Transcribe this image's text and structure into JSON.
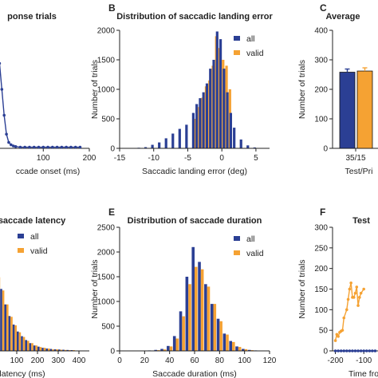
{
  "colors": {
    "all": "#2b3f94",
    "valid": "#f5a233",
    "axis": "#222222"
  },
  "legend": {
    "all": "all",
    "valid": "valid"
  },
  "panels": [
    {
      "id": "A",
      "label": "",
      "title": "ponse trials",
      "xlabel": "ccade onset (ms)",
      "ylabel": ""
    },
    {
      "id": "B",
      "label": "B",
      "title": "Distribution of saccadic landing error",
      "xlabel": "Saccadic landing error (deg)",
      "ylabel": "Number of trials"
    },
    {
      "id": "C",
      "label": "C",
      "title": "Average",
      "xlabel": "Test/Pri",
      "ylabel": "Number of trials"
    },
    {
      "id": "D",
      "label": "",
      "title": "saccade latency",
      "xlabel": "latency (ms)",
      "ylabel": ""
    },
    {
      "id": "E",
      "label": "E",
      "title": "Distribution of saccade duration",
      "xlabel": "Saccade duration (ms)",
      "ylabel": "Number of trials"
    },
    {
      "id": "F",
      "label": "F",
      "title": "Test",
      "xlabel": "Time fro",
      "ylabel": "Number of trials"
    }
  ],
  "chart_data": [
    {
      "panel": "A",
      "type": "line",
      "xlim": [
        -20,
        200
      ],
      "ylim": [
        0,
        1
      ],
      "xticks": [
        0,
        100,
        200
      ],
      "series": [
        {
          "x": [
            -5,
            0,
            5,
            10,
            15,
            20,
            25,
            30,
            35,
            40,
            50,
            60,
            70,
            80,
            90,
            100,
            110,
            120,
            130,
            140,
            150,
            160,
            170,
            180
          ],
          "y": [
            0.45,
            1.0,
            0.72,
            0.5,
            0.28,
            0.12,
            0.05,
            0.03,
            0.02,
            0.015,
            0.01,
            0.01,
            0.01,
            0.01,
            0.01,
            0.01,
            0.01,
            0.01,
            0.01,
            0.01,
            0.01,
            0.01,
            0.01,
            0.01
          ]
        }
      ],
      "annotations": [
        "dashed vertical line at x=0"
      ]
    },
    {
      "panel": "B",
      "type": "bar",
      "xlim": [
        -15,
        7
      ],
      "ylim": [
        0,
        2000
      ],
      "xticks": [
        -15,
        -10,
        -5,
        0,
        5
      ],
      "yticks": [
        0,
        500,
        1000,
        1500,
        2000
      ],
      "x": [
        -12.0,
        -11.0,
        -10.0,
        -9.0,
        -8.0,
        -7.0,
        -6.0,
        -5.0,
        -4.0,
        -3.5,
        -3.0,
        -2.5,
        -2.0,
        -1.5,
        -1.0,
        -0.5,
        0.0,
        0.5,
        1.0,
        1.5,
        2.0,
        3.0,
        4.0,
        5.0
      ],
      "series": [
        {
          "name": "all",
          "values": [
            10,
            20,
            60,
            100,
            170,
            250,
            330,
            400,
            600,
            750,
            850,
            950,
            1100,
            1350,
            1500,
            1980,
            1850,
            1350,
            950,
            600,
            350,
            150,
            50,
            15
          ]
        },
        {
          "name": "valid",
          "values": [
            0,
            0,
            0,
            0,
            0,
            0,
            0,
            0,
            500,
            700,
            860,
            1050,
            1150,
            1400,
            1900,
            1700,
            1500,
            1400,
            1000,
            0,
            0,
            0,
            0,
            0
          ]
        }
      ],
      "legend": "top-right"
    },
    {
      "panel": "C",
      "type": "bar",
      "categories": [
        "35/15"
      ],
      "ylim": [
        0,
        400
      ],
      "yticks": [
        0,
        100,
        200,
        300,
        400
      ],
      "series": [
        {
          "name": "all",
          "values": [
            258
          ]
        },
        {
          "name": "valid",
          "values": [
            262
          ]
        }
      ]
    },
    {
      "panel": "D",
      "type": "bar",
      "xlim": [
        0,
        450
      ],
      "xticks": [
        100,
        200,
        300,
        400
      ],
      "x": [
        0,
        20,
        40,
        60,
        80,
        100,
        120,
        140,
        160,
        180,
        200,
        220,
        240,
        260,
        280,
        300,
        320,
        340,
        360
      ],
      "series": [
        {
          "name": "all",
          "values": [
            1.0,
            0.8,
            0.6,
            0.45,
            0.34,
            0.25,
            0.19,
            0.14,
            0.1,
            0.07,
            0.055,
            0.04,
            0.03,
            0.025,
            0.02,
            0.018,
            0.015,
            0.012,
            0.01
          ]
        },
        {
          "name": "valid",
          "values": [
            0.95,
            0.78,
            0.6,
            0.44,
            0.33,
            0.24,
            0.18,
            0.13,
            0.1,
            0.07,
            0.05,
            0.04,
            0.03,
            0.02,
            0.02,
            0.015,
            0.012,
            0.01,
            0.01
          ]
        }
      ],
      "legend": "top-right"
    },
    {
      "panel": "E",
      "type": "bar",
      "xlim": [
        0,
        120
      ],
      "ylim": [
        0,
        2500
      ],
      "xticks": [
        0,
        20,
        40,
        60,
        80,
        100,
        120
      ],
      "yticks": [
        0,
        500,
        1000,
        1500,
        2000,
        2500
      ],
      "x": [
        25,
        30,
        35,
        40,
        45,
        50,
        55,
        60,
        65,
        70,
        75,
        80,
        85,
        90,
        95,
        100,
        105,
        110
      ],
      "series": [
        {
          "name": "all",
          "values": [
            10,
            20,
            40,
            100,
            300,
            800,
            1500,
            2100,
            1800,
            1350,
            950,
            650,
            350,
            200,
            90,
            40,
            20,
            10
          ]
        },
        {
          "name": "valid",
          "values": [
            5,
            15,
            30,
            90,
            250,
            700,
            1350,
            1700,
            1650,
            1300,
            950,
            600,
            330,
            180,
            80,
            35,
            15,
            5
          ]
        }
      ],
      "legend": "top-right"
    },
    {
      "panel": "F",
      "type": "line",
      "xlim": [
        -210,
        -50
      ],
      "ylim": [
        0,
        300
      ],
      "xticks": [
        -200,
        -100
      ],
      "yticks": [
        0,
        50,
        100,
        150,
        200,
        250,
        300
      ],
      "series": [
        {
          "name": "valid",
          "x": [
            -200,
            -195,
            -190,
            -185,
            -180,
            -175,
            -170,
            -160,
            -155,
            -150,
            -145,
            -140,
            -135,
            -130,
            -125,
            -120,
            -115,
            -110,
            -100
          ],
          "y": [
            25,
            40,
            35,
            45,
            48,
            50,
            80,
            100,
            125,
            150,
            165,
            130,
            130,
            140,
            155,
            110,
            130,
            140,
            150
          ]
        },
        {
          "name": "all",
          "x": [
            -200,
            -190,
            -180,
            -170,
            -160,
            -150,
            -140,
            -130,
            -120,
            -110,
            -100,
            -90,
            -80,
            -70,
            -60
          ],
          "y": [
            0,
            0,
            0,
            0,
            0,
            0,
            0,
            0,
            0,
            0,
            0,
            0,
            0,
            0,
            0
          ]
        }
      ]
    }
  ]
}
